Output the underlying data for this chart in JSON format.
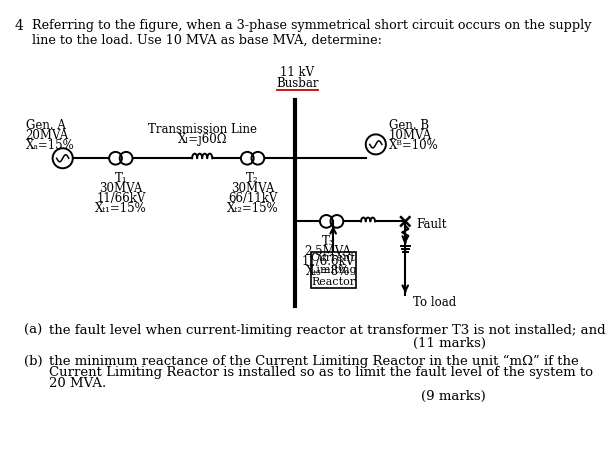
{
  "title_number": "4",
  "title_text": "Referring to the figure, when a 3-phase symmetrical short circuit occurs on the supply\nline to the load. Use 10 MVA as base MVA, determine:",
  "busbar_label_top": "11 kV",
  "busbar_label_bot": "Busbar",
  "gen_a_lines": [
    "Gen. A",
    "20MVA",
    "Xₐ=15%"
  ],
  "gen_b_lines": [
    "Gen. B",
    "10MVA",
    "Xᴮ=10%"
  ],
  "t1_lines": [
    "T₁",
    "30MVA",
    "11/66kV",
    "Xₜ₁=15%"
  ],
  "t2_lines": [
    "T₂",
    "30MVA",
    "66/11kV",
    "Xₜ₂=15%"
  ],
  "t3_lines": [
    "T₃",
    "2.5MVA",
    "11/6.6kV",
    "Xₜ₃=8%"
  ],
  "tline_lines": [
    "Transmission Line",
    "Xₗ=j60Ω"
  ],
  "fault_label": "Fault",
  "to_load_label": "To load",
  "clr_lines": [
    "Current",
    "Limiting",
    "Reactor"
  ],
  "part_a_label": "(a)",
  "part_a_text": "the fault level when current-limiting reactor at transformer T3 is not installed; and",
  "part_a_marks": "(11 marks)",
  "part_b_label": "(b)",
  "part_b_lines": [
    "the minimum reactance of the Current Limiting Reactor in the unit “mΩ” if the",
    "Current Limiting Reactor is installed so as to limit the fault level of the system to",
    "20 MVA."
  ],
  "part_b_marks": "(9 marks)",
  "bg_color": "#ffffff",
  "text_color": "#000000",
  "line_color": "#000000",
  "busbar_underline_color": "#cc0000"
}
